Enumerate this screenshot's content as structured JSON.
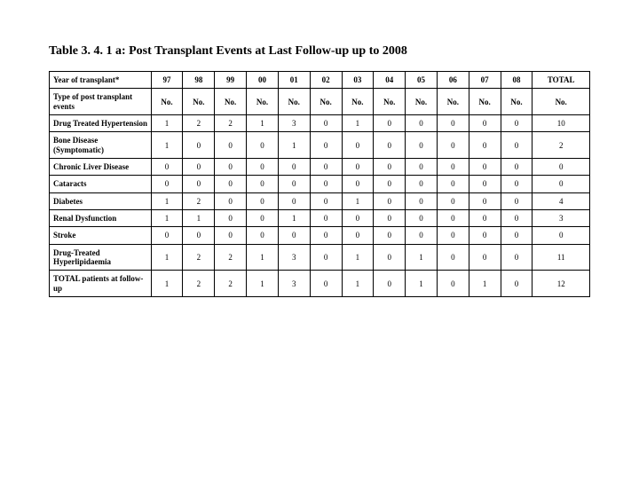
{
  "title": "Table 3. 4. 1 a: Post Transplant Events at Last Follow-up up to 2008",
  "columns": [
    "97",
    "98",
    "99",
    "00",
    "01",
    "02",
    "03",
    "04",
    "05",
    "06",
    "07",
    "08",
    "TOTAL"
  ],
  "header_row_label": "Year of transplant*",
  "subheader_row_label": "Type of post transplant events",
  "subheader_cell": "No.",
  "rows": [
    {
      "label": "Drug Treated Hypertension",
      "values": [
        "1",
        "2",
        "2",
        "1",
        "3",
        "0",
        "1",
        "0",
        "0",
        "0",
        "0",
        "0",
        "10"
      ]
    },
    {
      "label": "Bone Disease (Symptomatic)",
      "values": [
        "1",
        "0",
        "0",
        "0",
        "1",
        "0",
        "0",
        "0",
        "0",
        "0",
        "0",
        "0",
        "2"
      ]
    },
    {
      "label": "Chronic Liver Disease",
      "values": [
        "0",
        "0",
        "0",
        "0",
        "0",
        "0",
        "0",
        "0",
        "0",
        "0",
        "0",
        "0",
        "0"
      ]
    },
    {
      "label": "Cataracts",
      "values": [
        "0",
        "0",
        "0",
        "0",
        "0",
        "0",
        "0",
        "0",
        "0",
        "0",
        "0",
        "0",
        "0"
      ]
    },
    {
      "label": "Diabetes",
      "values": [
        "1",
        "2",
        "0",
        "0",
        "0",
        "0",
        "1",
        "0",
        "0",
        "0",
        "0",
        "0",
        "4"
      ]
    },
    {
      "label": "Renal Dysfunction",
      "values": [
        "1",
        "1",
        "0",
        "0",
        "1",
        "0",
        "0",
        "0",
        "0",
        "0",
        "0",
        "0",
        "3"
      ]
    },
    {
      "label": "Stroke",
      "values": [
        "0",
        "0",
        "0",
        "0",
        "0",
        "0",
        "0",
        "0",
        "0",
        "0",
        "0",
        "0",
        "0"
      ]
    },
    {
      "label": "Drug-Treated Hyperlipidaemia",
      "values": [
        "1",
        "2",
        "2",
        "1",
        "3",
        "0",
        "1",
        "0",
        "1",
        "0",
        "0",
        "0",
        "11"
      ]
    },
    {
      "label": "TOTAL patients at follow-up",
      "values": [
        "1",
        "2",
        "2",
        "1",
        "3",
        "0",
        "1",
        "0",
        "1",
        "0",
        "1",
        "0",
        "12"
      ]
    }
  ],
  "colors": {
    "border": "#000000",
    "background": "#ffffff",
    "text": "#000000"
  }
}
